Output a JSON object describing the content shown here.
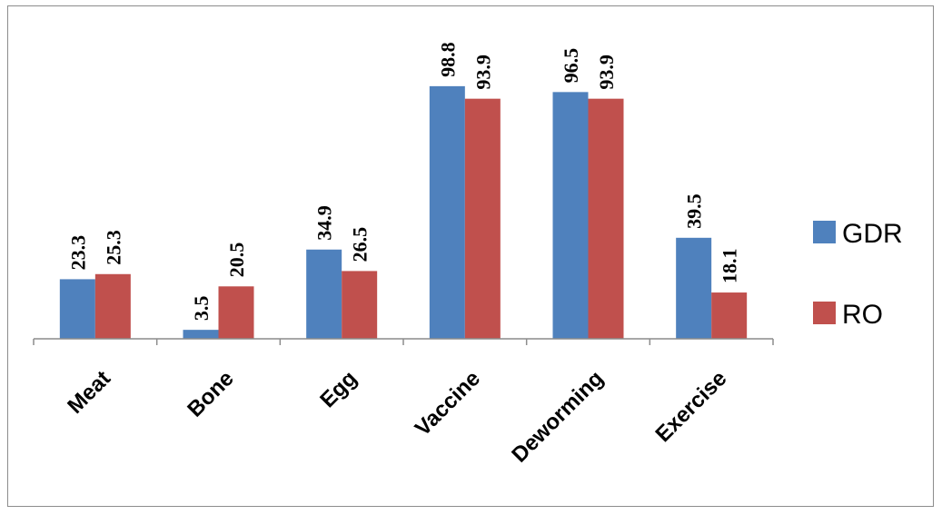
{
  "chart_data": {
    "type": "bar",
    "categories": [
      "Meat",
      "Bone",
      "Egg",
      "Vaccine",
      "Deworming",
      "Exercise"
    ],
    "series": [
      {
        "name": "GDR",
        "color": "#4f81bd",
        "values": [
          23.3,
          3.5,
          34.9,
          98.8,
          96.5,
          39.5
        ]
      },
      {
        "name": "RO",
        "color": "#c0504d",
        "values": [
          25.3,
          20.5,
          26.5,
          93.9,
          93.9,
          18.1
        ]
      }
    ],
    "value_labels": [
      [
        "23.3",
        "3.5",
        "34.9",
        "98.8",
        "96.5",
        "39.5"
      ],
      [
        "25.3",
        "20.5",
        "26.5",
        "93.9",
        "93.9",
        "18.1"
      ]
    ],
    "title": "",
    "xlabel": "",
    "ylabel": "",
    "ylim": [
      0,
      100
    ],
    "grid": false,
    "legend_position": "right",
    "data_labels": "rotated-vertical"
  }
}
